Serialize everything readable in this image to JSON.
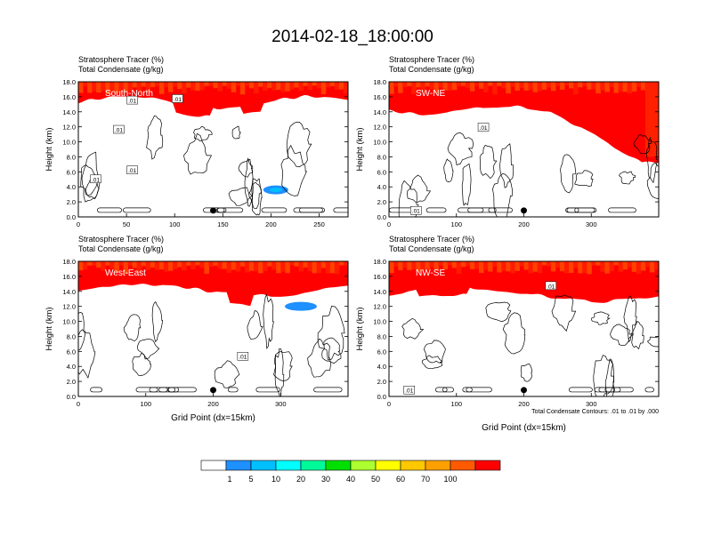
{
  "title": "2014-02-18_18:00:00",
  "colorbar": {
    "labels": [
      "1",
      "5",
      "10",
      "20",
      "30",
      "40",
      "50",
      "60",
      "70",
      "100"
    ],
    "colors": [
      "#ffffff",
      "#1e90ff",
      "#00bfff",
      "#00ffff",
      "#00fa9a",
      "#00e000",
      "#adff2f",
      "#ffff00",
      "#ffc800",
      "#ffa000",
      "#ff5a00",
      "#ff0000"
    ]
  },
  "contour_note": "Total Condensate Contours: .01 to .01 by .000",
  "chart_data": [
    {
      "type": "heatmap",
      "panel": "South-North",
      "header_line1": "Stratosphere Tracer   (%)",
      "header_line2": "Total Condensate   (g/kg)",
      "ylabel": "Height (km)",
      "xlabel": "",
      "ylim": [
        0,
        18
      ],
      "xlim": [
        0,
        280
      ],
      "yticks": [
        "0.0",
        "2.0",
        "4.0",
        "6.0",
        "8.0",
        "10.0",
        "12.0",
        "14.0",
        "16.0",
        "18.0"
      ],
      "xticks": [
        0,
        50,
        100,
        150,
        200,
        250
      ],
      "marker_x": 140,
      "contour_labels": [
        {
          "x": 18,
          "y": 5.0,
          "text": ".01"
        },
        {
          "x": 42,
          "y": 11.6,
          "text": ".01"
        },
        {
          "x": 56,
          "y": 6.2,
          "text": ".01"
        },
        {
          "x": 56,
          "y": 15.5,
          "text": ".01"
        },
        {
          "x": 103,
          "y": 15.7,
          "text": ".01"
        }
      ]
    },
    {
      "type": "heatmap",
      "panel": "SW-NE",
      "header_line1": "Stratosphere Tracer   (%)",
      "header_line2": "Total Condensate   (g/kg)",
      "ylabel": "Height (km)",
      "xlabel": "",
      "ylim": [
        0,
        18
      ],
      "xlim": [
        0,
        400
      ],
      "yticks": [
        "0.0",
        "2.0",
        "4.0",
        "6.0",
        "8.0",
        "10.0",
        "12.0",
        "14.0",
        "16.0",
        "18.0"
      ],
      "xticks": [
        0,
        100,
        200,
        300
      ],
      "marker_x": 200,
      "contour_labels": [
        {
          "x": 140,
          "y": 11.9,
          "text": ".01"
        },
        {
          "x": 40,
          "y": 0.8,
          "text": ".01"
        }
      ]
    },
    {
      "type": "heatmap",
      "panel": "West-East",
      "header_line1": "Stratosphere Tracer   (%)",
      "header_line2": "Total Condensate   (g/kg)",
      "ylabel": "Height (km)",
      "xlabel": "Grid Point (dx=15km)",
      "ylim": [
        0,
        18
      ],
      "xlim": [
        0,
        400
      ],
      "yticks": [
        "0.0",
        "2.0",
        "4.0",
        "6.0",
        "8.0",
        "10.0",
        "12.0",
        "14.0",
        "16.0",
        "18.0"
      ],
      "xticks": [
        0,
        100,
        200,
        300
      ],
      "marker_x": 200,
      "contour_labels": [
        {
          "x": 244,
          "y": 5.3,
          "text": ".01"
        }
      ]
    },
    {
      "type": "heatmap",
      "panel": "NW-SE",
      "header_line1": "Stratosphere Tracer   (%)",
      "header_line2": "Total Condensate   (g/kg)",
      "ylabel": "Height (km)",
      "xlabel": "Grid Point (dx=15km)",
      "ylim": [
        0,
        18
      ],
      "xlim": [
        0,
        400
      ],
      "yticks": [
        "0.0",
        "2.0",
        "4.0",
        "6.0",
        "8.0",
        "10.0",
        "12.0",
        "14.0",
        "16.0",
        "18.0"
      ],
      "xticks": [
        0,
        100,
        200,
        300
      ],
      "marker_x": 200,
      "contour_labels": [
        {
          "x": 240,
          "y": 14.7,
          "text": ".01"
        },
        {
          "x": 30,
          "y": 0.8,
          "text": ".01"
        }
      ]
    }
  ]
}
